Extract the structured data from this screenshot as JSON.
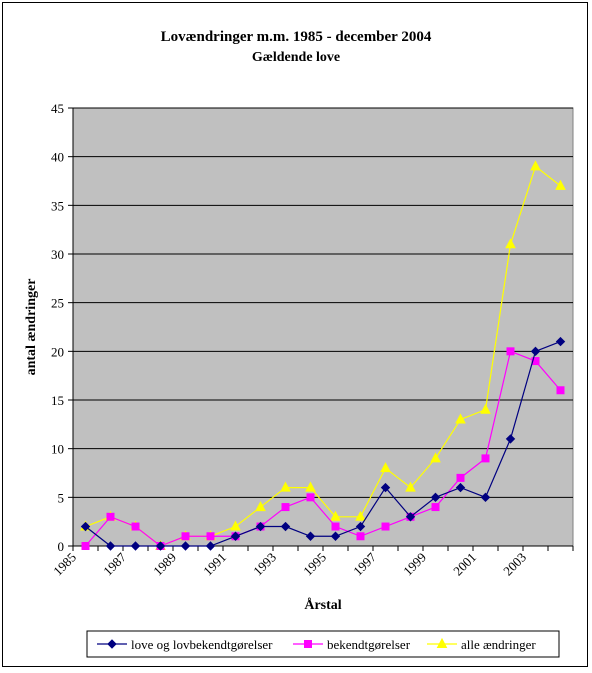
{
  "chart_data": {
    "type": "line",
    "title": "Lovændringer m.m. 1985 - december 2004",
    "subtitle": "Gældende love",
    "xlabel": "Årstal",
    "ylabel": "antal ændringer",
    "x": [
      1985,
      1986,
      1987,
      1988,
      1989,
      1990,
      1991,
      1992,
      1993,
      1994,
      1995,
      1996,
      1997,
      1998,
      1999,
      2000,
      2001,
      2002,
      2003,
      2004
    ],
    "x_tick_labels": [
      "1985",
      "1987",
      "1989",
      "1991",
      "1993",
      "1995",
      "1997",
      "1999",
      "2001",
      "2003"
    ],
    "ylim": [
      0,
      45
    ],
    "y_ticks": [
      "0",
      "5",
      "10",
      "15",
      "20",
      "25",
      "30",
      "35",
      "40",
      "45"
    ],
    "grid": true,
    "legend_position": "bottom",
    "series": [
      {
        "name": "love og lovbekendtgørelser",
        "color": "#000080",
        "marker": "diamond",
        "values": [
          2,
          0,
          0,
          0,
          0,
          0,
          1,
          2,
          2,
          1,
          1,
          2,
          6,
          3,
          5,
          6,
          5,
          11,
          20,
          21
        ]
      },
      {
        "name": "bekendtgørelser",
        "color": "#ff00ff",
        "marker": "square",
        "values": [
          0,
          3,
          2,
          0,
          1,
          1,
          1,
          2,
          4,
          5,
          2,
          1,
          2,
          3,
          4,
          7,
          9,
          20,
          19,
          16
        ]
      },
      {
        "name": "alle ændringer",
        "color": "#ffff00",
        "marker": "triangle",
        "values": [
          2,
          3,
          2,
          0,
          1,
          1,
          2,
          4,
          6,
          6,
          3,
          3,
          8,
          6,
          9,
          13,
          14,
          31,
          39,
          37
        ]
      }
    ]
  }
}
